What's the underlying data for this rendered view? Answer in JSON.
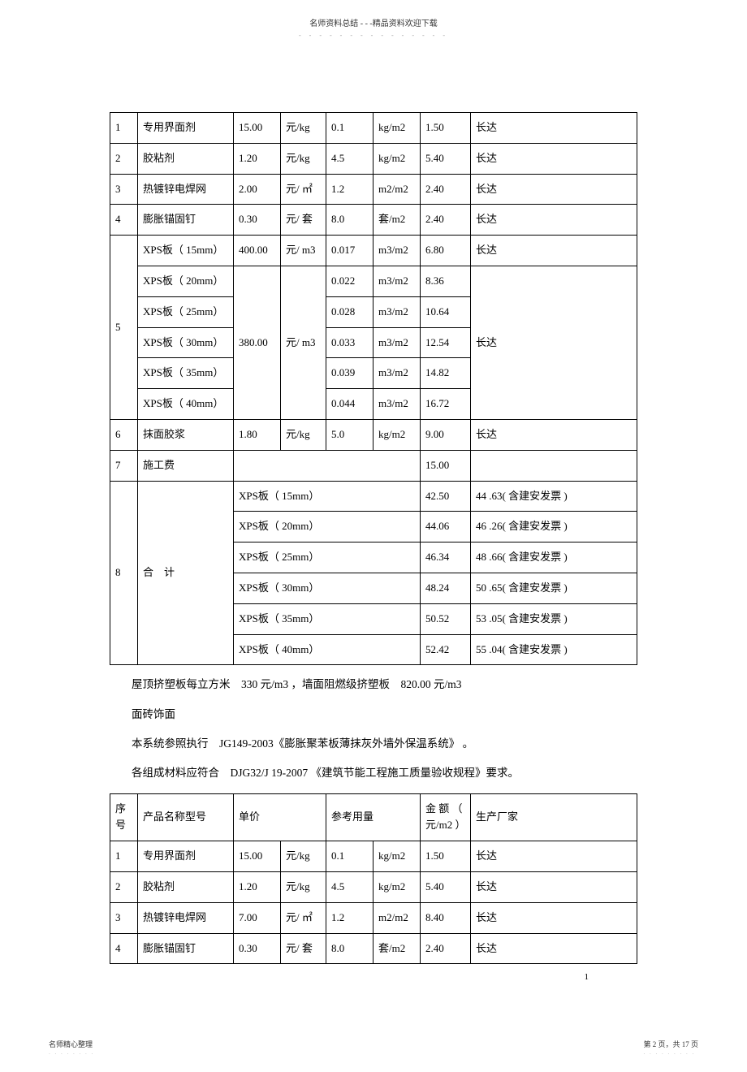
{
  "header": {
    "text": "名师资料总结 - - -精品资料欢迎下载",
    "dots": "- - - - - - - - - - - - - - -"
  },
  "table1": {
    "rows": [
      {
        "no": "1",
        "name": "专用界面剂",
        "price": "15.00",
        "price_unit": "元/kg",
        "qty": "0.1",
        "qty_unit": "kg/m2",
        "amount": "1.50",
        "vendor": "长达"
      },
      {
        "no": "2",
        "name": "胶粘剂",
        "price": "1.20",
        "price_unit": "元/kg",
        "qty": "4.5",
        "qty_unit": "kg/m2",
        "amount": "5.40",
        "vendor": "长达"
      },
      {
        "no": "3",
        "name": "热镀锌电焊网",
        "price": "2.00",
        "price_unit": "元/ ㎡",
        "qty": "1.2",
        "qty_unit": "m2/m2",
        "amount": "2.40",
        "vendor": "长达"
      },
      {
        "no": "4",
        "name": "膨胀锚固钉",
        "price": "0.30",
        "price_unit": "元/ 套",
        "qty": "8.0",
        "qty_unit": "套/m2",
        "amount": "2.40",
        "vendor": "长达"
      }
    ],
    "xps_group": {
      "no": "5",
      "first": {
        "name": "XPS板（ 15mm）",
        "price": "400.00",
        "price_unit": "元/ m3",
        "qty": "0.017",
        "qty_unit": "m3/m2",
        "amount": "6.80",
        "vendor": "长达"
      },
      "shared_price": "380.00",
      "shared_price_unit": "元/ m3",
      "shared_vendor": "长达",
      "items": [
        {
          "name": "XPS板（ 20mm）",
          "qty": "0.022",
          "qty_unit": "m3/m2",
          "amount": "8.36"
        },
        {
          "name": "XPS板（ 25mm）",
          "qty": "0.028",
          "qty_unit": "m3/m2",
          "amount": "10.64"
        },
        {
          "name": "XPS板（ 30mm）",
          "qty": "0.033",
          "qty_unit": "m3/m2",
          "amount": "12.54"
        },
        {
          "name": "XPS板（ 35mm）",
          "qty": "0.039",
          "qty_unit": "m3/m2",
          "amount": "14.82"
        },
        {
          "name": "XPS板（ 40mm）",
          "qty": "0.044",
          "qty_unit": "m3/m2",
          "amount": "16.72"
        }
      ]
    },
    "row6": {
      "no": "6",
      "name": "抹面胶浆",
      "price": "1.80",
      "price_unit": "元/kg",
      "qty": "5.0",
      "qty_unit": "kg/m2",
      "amount": "9.00",
      "vendor": "长达"
    },
    "row7": {
      "no": "7",
      "name": "施工费",
      "amount": "15.00"
    },
    "totals": {
      "no": "8",
      "label": "合　计",
      "items": [
        {
          "name": "XPS板（ 15mm）",
          "amount": "42.50",
          "note": "44 .63( 含建安发票 )"
        },
        {
          "name": "XPS板（ 20mm）",
          "amount": "44.06",
          "note": "46 .26( 含建安发票 )"
        },
        {
          "name": "XPS板（ 25mm）",
          "amount": "46.34",
          "note": "48 .66( 含建安发票 )"
        },
        {
          "name": "XPS板（ 30mm）",
          "amount": "48.24",
          "note": "50 .65( 含建安发票 )"
        },
        {
          "name": "XPS板（ 35mm）",
          "amount": "50.52",
          "note": "53 .05( 含建安发票 )"
        },
        {
          "name": "XPS板（ 40mm）",
          "amount": "52.42",
          "note": "55 .04( 含建安发票 )"
        }
      ]
    }
  },
  "paragraphs": [
    "屋顶挤塑板每立方米　330 元/m3 ，墙面阻燃级挤塑板　820.00 元/m3",
    "面砖饰面",
    "本系统参照执行　JG149-2003《膨胀聚苯板薄抹灰外墙外保温系统》 。",
    "各组成材料应符合　DJG32/J 19-2007 《建筑节能工程施工质量验收规程》要求。"
  ],
  "table2": {
    "header": {
      "c1": "序号",
      "c2": "产品名称型号",
      "c3": "单价",
      "c4": "参考用量",
      "c5": "金 额 （ 元/m2 ）",
      "c6": "生产厂家"
    },
    "rows": [
      {
        "no": "1",
        "name": "专用界面剂",
        "price": "15.00",
        "price_unit": "元/kg",
        "qty": "0.1",
        "qty_unit": "kg/m2",
        "amount": "1.50",
        "vendor": "长达"
      },
      {
        "no": "2",
        "name": "胶粘剂",
        "price": "1.20",
        "price_unit": "元/kg",
        "qty": "4.5",
        "qty_unit": "kg/m2",
        "amount": "5.40",
        "vendor": "长达"
      },
      {
        "no": "3",
        "name": "热镀锌电焊网",
        "price": "7.00",
        "price_unit": "元/ ㎡",
        "qty": "1.2",
        "qty_unit": "m2/m2",
        "amount": "8.40",
        "vendor": "长达"
      },
      {
        "no": "4",
        "name": "膨胀锚固钉",
        "price": "0.30",
        "price_unit": "元/ 套",
        "qty": "8.0",
        "qty_unit": "套/m2",
        "amount": "2.40",
        "vendor": "长达"
      }
    ]
  },
  "page_num_right": "1",
  "footer": {
    "left": "名师精心整理",
    "left_dots": ". . . . . . . .",
    "right": "第 2 页，共 17 页",
    "right_dots": ". . . . . . . . ."
  },
  "col_widths": {
    "c1": "34px",
    "c2": "118px",
    "c3": "58px",
    "c4": "56px",
    "c5": "58px",
    "c6": "58px",
    "c7": "62px",
    "c8": "auto"
  }
}
